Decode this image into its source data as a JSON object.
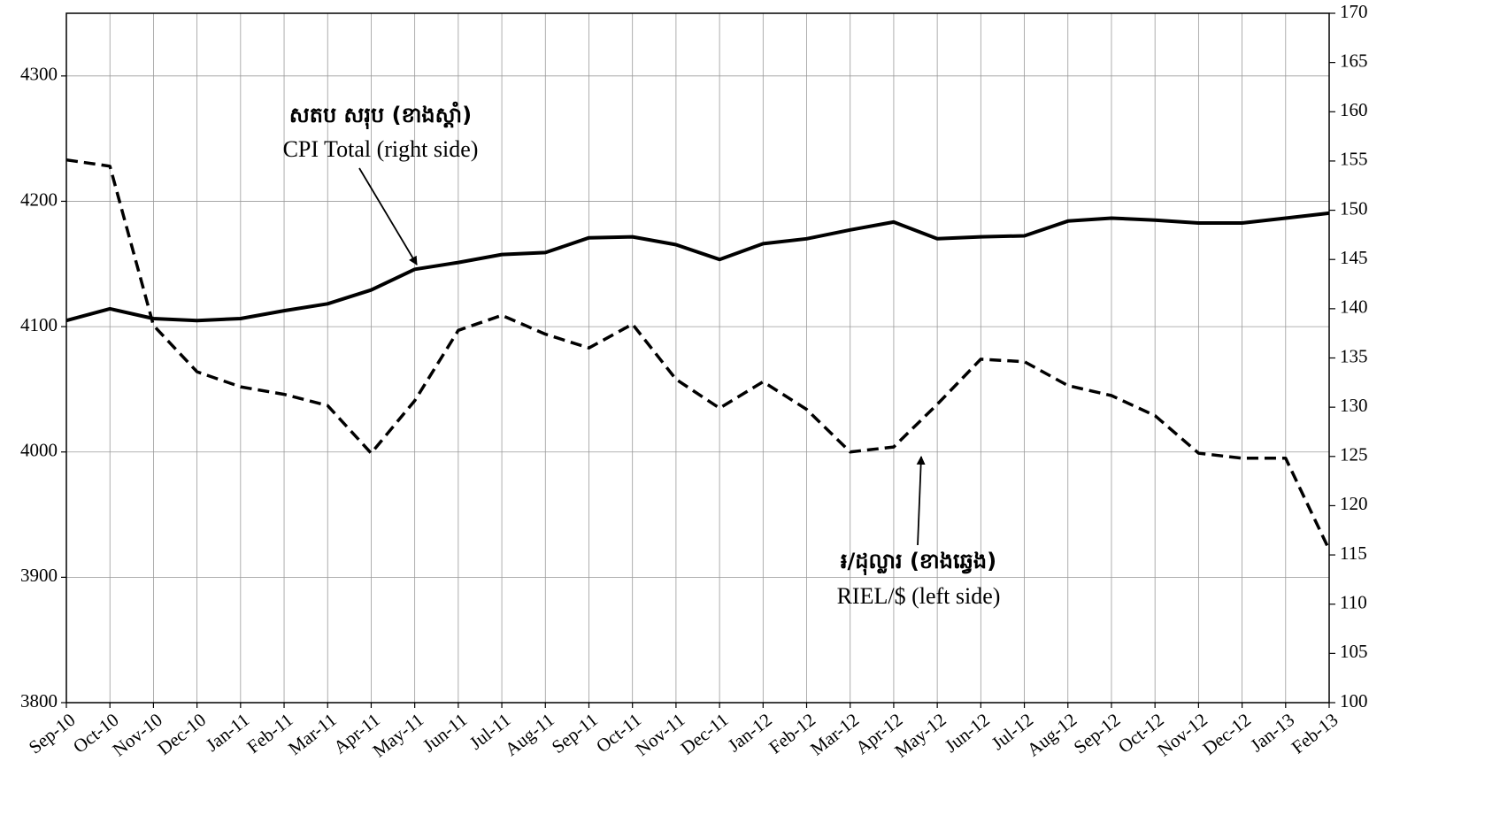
{
  "chart_data": {
    "type": "line",
    "title": "",
    "categories": [
      "Sep-10",
      "Oct-10",
      "Nov-10",
      "Dec-10",
      "Jan-11",
      "Feb-11",
      "Mar-11",
      "Apr-11",
      "May-11",
      "Jun-11",
      "Jul-11",
      "Aug-11",
      "Sep-11",
      "Oct-11",
      "Nov-11",
      "Dec-11",
      "Jan-12",
      "Feb-12",
      "Mar-12",
      "Apr-12",
      "May-12",
      "Jun-12",
      "Jul-12",
      "Aug-12",
      "Sep-12",
      "Oct-12",
      "Nov-12",
      "Dec-12",
      "Jan-13",
      "Feb-13"
    ],
    "y_left": {
      "ylim": [
        3800,
        4350
      ],
      "ticks": [
        3800,
        3900,
        4000,
        4100,
        4200,
        4300
      ]
    },
    "y_right": {
      "ylim": [
        100,
        170
      ],
      "ticks": [
        100,
        105,
        110,
        115,
        120,
        125,
        130,
        135,
        140,
        145,
        150,
        155,
        160,
        165,
        170
      ]
    },
    "grid": true,
    "series": [
      {
        "name": "CPI Total (right side)",
        "axis": "right",
        "style": "solid",
        "values": [
          138.8,
          140.0,
          139.0,
          138.8,
          139.0,
          139.8,
          140.5,
          141.9,
          144.0,
          144.7,
          145.5,
          145.7,
          147.2,
          147.3,
          146.5,
          145.0,
          146.6,
          147.1,
          148.0,
          148.8,
          147.1,
          147.3,
          147.4,
          148.9,
          149.2,
          149.0,
          148.7,
          148.7,
          149.2,
          149.7
        ]
      },
      {
        "name": "RIEL/$ (left side)",
        "axis": "left",
        "style": "dashed",
        "values": [
          4233,
          4228,
          4101,
          4064,
          4052,
          4046,
          4037,
          3999,
          4041,
          4097,
          4109,
          4094,
          4083,
          4102,
          4058,
          4035,
          4056,
          4034,
          4000,
          4004,
          4038,
          4074,
          4072,
          4053,
          4045,
          4029,
          3999,
          3995,
          3995,
          3922
        ]
      }
    ],
    "annotations": [
      {
        "khmer": "សតប  សរុប (ខាងស្តាំ)",
        "text": "CPI Total (right side)"
      },
      {
        "khmer": "៛/ដុល្លារ (ខាងឆ្វេង)",
        "text": "RIEL/$ (left side)"
      }
    ]
  }
}
